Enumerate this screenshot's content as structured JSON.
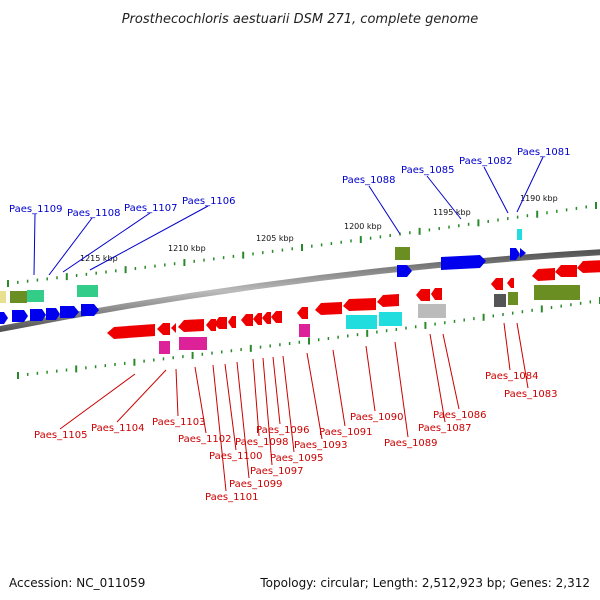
{
  "title": "Prosthecochloris aestuarii DSM 271, complete genome",
  "footer": {
    "accession": "Accession: NC_011059",
    "stats": "Topology: circular; Length: 2,512,923 bp; Genes: 2,312"
  },
  "scale_labels": [
    "1190 kbp",
    "1195 kbp",
    "1200 kbp",
    "1205 kbp",
    "1210 kbp",
    "1215 kbp"
  ],
  "genes_top": [
    "Paes_1081",
    "Paes_1082",
    "Paes_1085",
    "Paes_1088",
    "Paes_1106",
    "Paes_1107",
    "Paes_1108",
    "Paes_1109"
  ],
  "genes_bottom": [
    "Paes_1083",
    "Paes_1084",
    "Paes_1086",
    "Paes_1087",
    "Paes_1089",
    "Paes_1090",
    "Paes_1091",
    "Paes_1093",
    "Paes_1095",
    "Paes_1096",
    "Paes_1097",
    "Paes_1098",
    "Paes_1099",
    "Paes_1100",
    "Paes_1101",
    "Paes_1102",
    "Paes_1103",
    "Paes_1104",
    "Paes_1105"
  ],
  "colors": {
    "forward_strand": "#0000ee",
    "reverse_strand": "#ee0000",
    "top_label": "#0000cc",
    "bottom_label": "#cc0000",
    "backbone": "#888888",
    "tick": "#2a8a2a",
    "cds_cyan": "#22dddd",
    "cds_magenta": "#dd2299",
    "cds_olive": "#6b8e23",
    "cds_gray": "#bbbbbb",
    "cds_green": "#33cc88",
    "cds_yellow": "#e8e090"
  }
}
